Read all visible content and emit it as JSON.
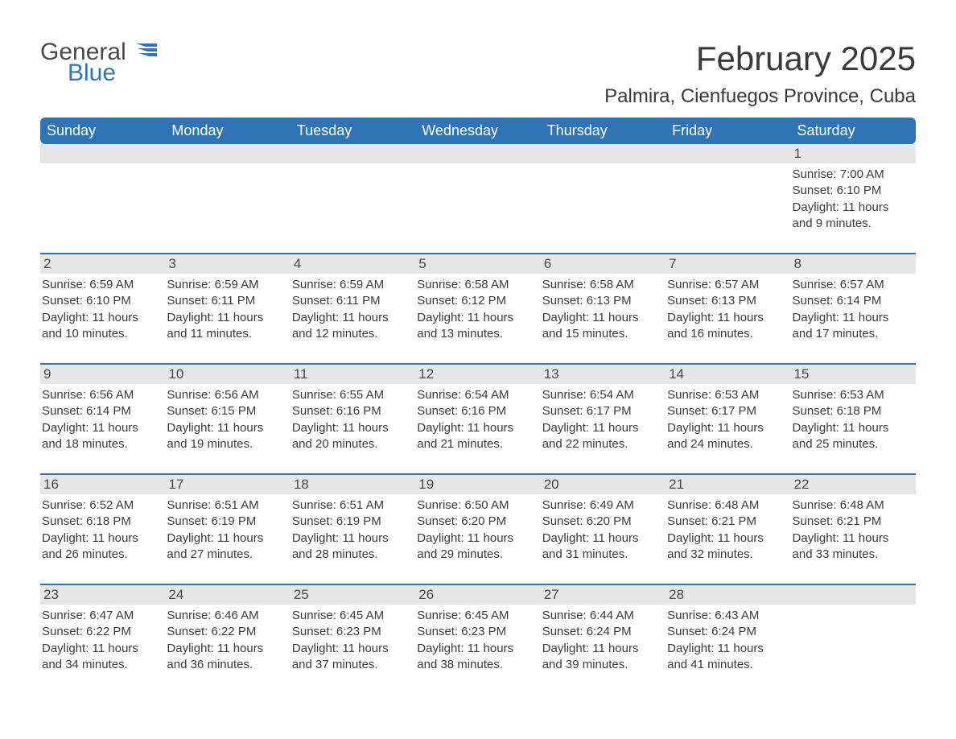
{
  "logo": {
    "text1": "General",
    "text2": "Blue",
    "flag_color": "#2f75b5"
  },
  "title": "February 2025",
  "location": "Palmira, Cienfuegos Province, Cuba",
  "colors": {
    "header_bg": "#2f75b5",
    "header_text": "#ffffff",
    "daynum_bg": "#e6e6e6",
    "text": "#3a3a3a",
    "row_border": "#2f75b5",
    "page_bg": "#ffffff"
  },
  "day_headers": [
    "Sunday",
    "Monday",
    "Tuesday",
    "Wednesday",
    "Thursday",
    "Friday",
    "Saturday"
  ],
  "weeks": [
    [
      {
        "day": "",
        "sunrise": "",
        "sunset": "",
        "daylight": ""
      },
      {
        "day": "",
        "sunrise": "",
        "sunset": "",
        "daylight": ""
      },
      {
        "day": "",
        "sunrise": "",
        "sunset": "",
        "daylight": ""
      },
      {
        "day": "",
        "sunrise": "",
        "sunset": "",
        "daylight": ""
      },
      {
        "day": "",
        "sunrise": "",
        "sunset": "",
        "daylight": ""
      },
      {
        "day": "",
        "sunrise": "",
        "sunset": "",
        "daylight": ""
      },
      {
        "day": "1",
        "sunrise": "Sunrise: 7:00 AM",
        "sunset": "Sunset: 6:10 PM",
        "daylight": "Daylight: 11 hours and 9 minutes."
      }
    ],
    [
      {
        "day": "2",
        "sunrise": "Sunrise: 6:59 AM",
        "sunset": "Sunset: 6:10 PM",
        "daylight": "Daylight: 11 hours and 10 minutes."
      },
      {
        "day": "3",
        "sunrise": "Sunrise: 6:59 AM",
        "sunset": "Sunset: 6:11 PM",
        "daylight": "Daylight: 11 hours and 11 minutes."
      },
      {
        "day": "4",
        "sunrise": "Sunrise: 6:59 AM",
        "sunset": "Sunset: 6:11 PM",
        "daylight": "Daylight: 11 hours and 12 minutes."
      },
      {
        "day": "5",
        "sunrise": "Sunrise: 6:58 AM",
        "sunset": "Sunset: 6:12 PM",
        "daylight": "Daylight: 11 hours and 13 minutes."
      },
      {
        "day": "6",
        "sunrise": "Sunrise: 6:58 AM",
        "sunset": "Sunset: 6:13 PM",
        "daylight": "Daylight: 11 hours and 15 minutes."
      },
      {
        "day": "7",
        "sunrise": "Sunrise: 6:57 AM",
        "sunset": "Sunset: 6:13 PM",
        "daylight": "Daylight: 11 hours and 16 minutes."
      },
      {
        "day": "8",
        "sunrise": "Sunrise: 6:57 AM",
        "sunset": "Sunset: 6:14 PM",
        "daylight": "Daylight: 11 hours and 17 minutes."
      }
    ],
    [
      {
        "day": "9",
        "sunrise": "Sunrise: 6:56 AM",
        "sunset": "Sunset: 6:14 PM",
        "daylight": "Daylight: 11 hours and 18 minutes."
      },
      {
        "day": "10",
        "sunrise": "Sunrise: 6:56 AM",
        "sunset": "Sunset: 6:15 PM",
        "daylight": "Daylight: 11 hours and 19 minutes."
      },
      {
        "day": "11",
        "sunrise": "Sunrise: 6:55 AM",
        "sunset": "Sunset: 6:16 PM",
        "daylight": "Daylight: 11 hours and 20 minutes."
      },
      {
        "day": "12",
        "sunrise": "Sunrise: 6:54 AM",
        "sunset": "Sunset: 6:16 PM",
        "daylight": "Daylight: 11 hours and 21 minutes."
      },
      {
        "day": "13",
        "sunrise": "Sunrise: 6:54 AM",
        "sunset": "Sunset: 6:17 PM",
        "daylight": "Daylight: 11 hours and 22 minutes."
      },
      {
        "day": "14",
        "sunrise": "Sunrise: 6:53 AM",
        "sunset": "Sunset: 6:17 PM",
        "daylight": "Daylight: 11 hours and 24 minutes."
      },
      {
        "day": "15",
        "sunrise": "Sunrise: 6:53 AM",
        "sunset": "Sunset: 6:18 PM",
        "daylight": "Daylight: 11 hours and 25 minutes."
      }
    ],
    [
      {
        "day": "16",
        "sunrise": "Sunrise: 6:52 AM",
        "sunset": "Sunset: 6:18 PM",
        "daylight": "Daylight: 11 hours and 26 minutes."
      },
      {
        "day": "17",
        "sunrise": "Sunrise: 6:51 AM",
        "sunset": "Sunset: 6:19 PM",
        "daylight": "Daylight: 11 hours and 27 minutes."
      },
      {
        "day": "18",
        "sunrise": "Sunrise: 6:51 AM",
        "sunset": "Sunset: 6:19 PM",
        "daylight": "Daylight: 11 hours and 28 minutes."
      },
      {
        "day": "19",
        "sunrise": "Sunrise: 6:50 AM",
        "sunset": "Sunset: 6:20 PM",
        "daylight": "Daylight: 11 hours and 29 minutes."
      },
      {
        "day": "20",
        "sunrise": "Sunrise: 6:49 AM",
        "sunset": "Sunset: 6:20 PM",
        "daylight": "Daylight: 11 hours and 31 minutes."
      },
      {
        "day": "21",
        "sunrise": "Sunrise: 6:48 AM",
        "sunset": "Sunset: 6:21 PM",
        "daylight": "Daylight: 11 hours and 32 minutes."
      },
      {
        "day": "22",
        "sunrise": "Sunrise: 6:48 AM",
        "sunset": "Sunset: 6:21 PM",
        "daylight": "Daylight: 11 hours and 33 minutes."
      }
    ],
    [
      {
        "day": "23",
        "sunrise": "Sunrise: 6:47 AM",
        "sunset": "Sunset: 6:22 PM",
        "daylight": "Daylight: 11 hours and 34 minutes."
      },
      {
        "day": "24",
        "sunrise": "Sunrise: 6:46 AM",
        "sunset": "Sunset: 6:22 PM",
        "daylight": "Daylight: 11 hours and 36 minutes."
      },
      {
        "day": "25",
        "sunrise": "Sunrise: 6:45 AM",
        "sunset": "Sunset: 6:23 PM",
        "daylight": "Daylight: 11 hours and 37 minutes."
      },
      {
        "day": "26",
        "sunrise": "Sunrise: 6:45 AM",
        "sunset": "Sunset: 6:23 PM",
        "daylight": "Daylight: 11 hours and 38 minutes."
      },
      {
        "day": "27",
        "sunrise": "Sunrise: 6:44 AM",
        "sunset": "Sunset: 6:24 PM",
        "daylight": "Daylight: 11 hours and 39 minutes."
      },
      {
        "day": "28",
        "sunrise": "Sunrise: 6:43 AM",
        "sunset": "Sunset: 6:24 PM",
        "daylight": "Daylight: 11 hours and 41 minutes."
      },
      {
        "day": "",
        "sunrise": "",
        "sunset": "",
        "daylight": ""
      }
    ]
  ]
}
